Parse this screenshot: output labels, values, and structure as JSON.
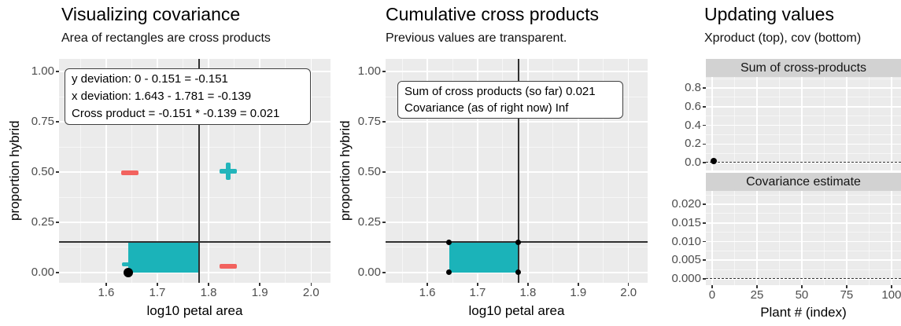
{
  "colors": {
    "teal_fill": "#1bb3b9",
    "teal_sign": "#23b5bb",
    "red_sign": "#f2625e",
    "panel_bg": "#ebebeb",
    "strip_bg": "#d2d2d2",
    "grid_major": "#ffffff",
    "grid_minor": "rgba(255,255,255,0.55)",
    "crosshair_line": "#303030",
    "dash_line": "#333333",
    "tick_text": "#4d4d4d",
    "point": "#000000"
  },
  "chart_data": [
    {
      "id": "visualizing-covariance",
      "type": "scatter",
      "title": "Visualizing covariance",
      "subtitle": "Area of rectangles are cross products",
      "xlabel": "log10 petal area",
      "ylabel": "proportion hybrid",
      "xlim": [
        1.508,
        2.038
      ],
      "ylim": [
        -0.051,
        1.063
      ],
      "x_ticks": [
        {
          "v": 1.6,
          "label": "1.6"
        },
        {
          "v": 1.7,
          "label": "1.7"
        },
        {
          "v": 1.8,
          "label": "1.8"
        },
        {
          "v": 1.9,
          "label": "1.9"
        },
        {
          "v": 2.0,
          "label": "2.0"
        }
      ],
      "y_ticks": [
        {
          "v": 0,
          "label": "0.00"
        },
        {
          "v": 0.25,
          "label": "0.25"
        },
        {
          "v": 0.5,
          "label": "0.50"
        },
        {
          "v": 0.75,
          "label": "0.75"
        },
        {
          "v": 1,
          "label": "1.00"
        }
      ],
      "x_minor": [
        1.55,
        1.65,
        1.75,
        1.85,
        1.95
      ],
      "y_minor": [
        0.125,
        0.375,
        0.625,
        0.875
      ],
      "mean_x": 1.781,
      "mean_y": 0.151,
      "rect": {
        "x0": 1.643,
        "x1": 1.781,
        "y0": 0,
        "y1": 0.151
      },
      "points": [
        {
          "x": 1.643,
          "y": 0
        }
      ],
      "quadrant_signs": [
        {
          "x": 1.646,
          "y": 0.496,
          "sign": "minus",
          "color": "red",
          "under_rect": false
        },
        {
          "x": 1.838,
          "y": 0.504,
          "sign": "plus",
          "color": "teal",
          "under_rect": false
        },
        {
          "x": 1.838,
          "y": 0.031,
          "sign": "minus",
          "color": "red",
          "under_rect": false
        },
        {
          "x": 1.648,
          "y": 0.04,
          "sign": "plus",
          "color": "teal",
          "under_rect": true
        }
      ],
      "annotation": {
        "lines": [
          "y deviation: 0 - 0.151 = -0.151",
          "x deviation: 1.643 - 1.781 = -0.139",
          "Cross product = -0.151 * -0.139 = 0.021"
        ]
      }
    },
    {
      "id": "cumulative-cross-products",
      "type": "scatter",
      "title": "Cumulative cross products",
      "subtitle": "Previous values are transparent.",
      "xlabel": "log10 petal area",
      "ylabel": "proportion hybrid",
      "xlim": [
        1.517,
        2.038
      ],
      "ylim": [
        -0.051,
        1.063
      ],
      "x_ticks": [
        {
          "v": 1.6,
          "label": "1.6"
        },
        {
          "v": 1.7,
          "label": "1.7"
        },
        {
          "v": 1.8,
          "label": "1.8"
        },
        {
          "v": 1.9,
          "label": "1.9"
        },
        {
          "v": 2.0,
          "label": "2.0"
        }
      ],
      "y_ticks": [
        {
          "v": 0,
          "label": "0.00"
        },
        {
          "v": 0.25,
          "label": "0.25"
        },
        {
          "v": 0.5,
          "label": "0.50"
        },
        {
          "v": 0.75,
          "label": "0.75"
        },
        {
          "v": 1,
          "label": "1.00"
        }
      ],
      "x_minor": [
        1.55,
        1.65,
        1.75,
        1.85,
        1.95
      ],
      "y_minor": [
        0.125,
        0.375,
        0.625,
        0.875
      ],
      "mean_x": 1.781,
      "mean_y": 0.151,
      "rect": {
        "x0": 1.643,
        "x1": 1.781,
        "y0": 0,
        "y1": 0.151
      },
      "corner_points": [
        {
          "x": 1.643,
          "y": 0
        },
        {
          "x": 1.781,
          "y": 0
        },
        {
          "x": 1.643,
          "y": 0.151
        },
        {
          "x": 1.781,
          "y": 0.151
        }
      ],
      "annotation": {
        "lines": [
          "Sum of cross products (so far) 0.021",
          "Covariance (as of right now) Inf"
        ]
      }
    },
    {
      "id": "updating-values",
      "type": "scatter",
      "title": "Updating values",
      "subtitle": "Xproduct (top), cov (bottom)",
      "xlabel": "Plant # (index)",
      "xlim": [
        -3.5,
        105.3
      ],
      "x_ticks": [
        {
          "v": 0,
          "label": "0"
        },
        {
          "v": 25,
          "label": "25"
        },
        {
          "v": 50,
          "label": "50"
        },
        {
          "v": 75,
          "label": "75"
        },
        {
          "v": 100,
          "label": "100"
        }
      ],
      "x_minor": [
        12.5,
        37.5,
        62.5,
        87.5
      ],
      "facets": [
        {
          "strip": "Sum of cross-products",
          "ylim": [
            -0.084,
            0.918
          ],
          "y_ticks": [
            {
              "v": 0,
              "label": "0.0"
            },
            {
              "v": 0.2,
              "label": "0.2"
            },
            {
              "v": 0.4,
              "label": "0.4"
            },
            {
              "v": 0.6,
              "label": "0.6"
            },
            {
              "v": 0.8,
              "label": "0.8"
            }
          ],
          "y_minor": [
            0.1,
            0.3,
            0.5,
            0.7,
            0.9
          ],
          "dash_y": 0,
          "points": [
            {
              "x": 1,
              "y": 0.021
            }
          ]
        },
        {
          "strip": "Covariance estimate",
          "ylim": [
            -0.0017,
            0.0236
          ],
          "y_ticks": [
            {
              "v": 0,
              "label": "0.000"
            },
            {
              "v": 0.005,
              "label": "0.005"
            },
            {
              "v": 0.01,
              "label": "0.010"
            },
            {
              "v": 0.015,
              "label": "0.015"
            },
            {
              "v": 0.02,
              "label": "0.020"
            }
          ],
          "y_minor": [
            0.0025,
            0.0075,
            0.0125,
            0.0175,
            0.0225
          ],
          "dash_y": 0,
          "points": []
        }
      ]
    }
  ]
}
